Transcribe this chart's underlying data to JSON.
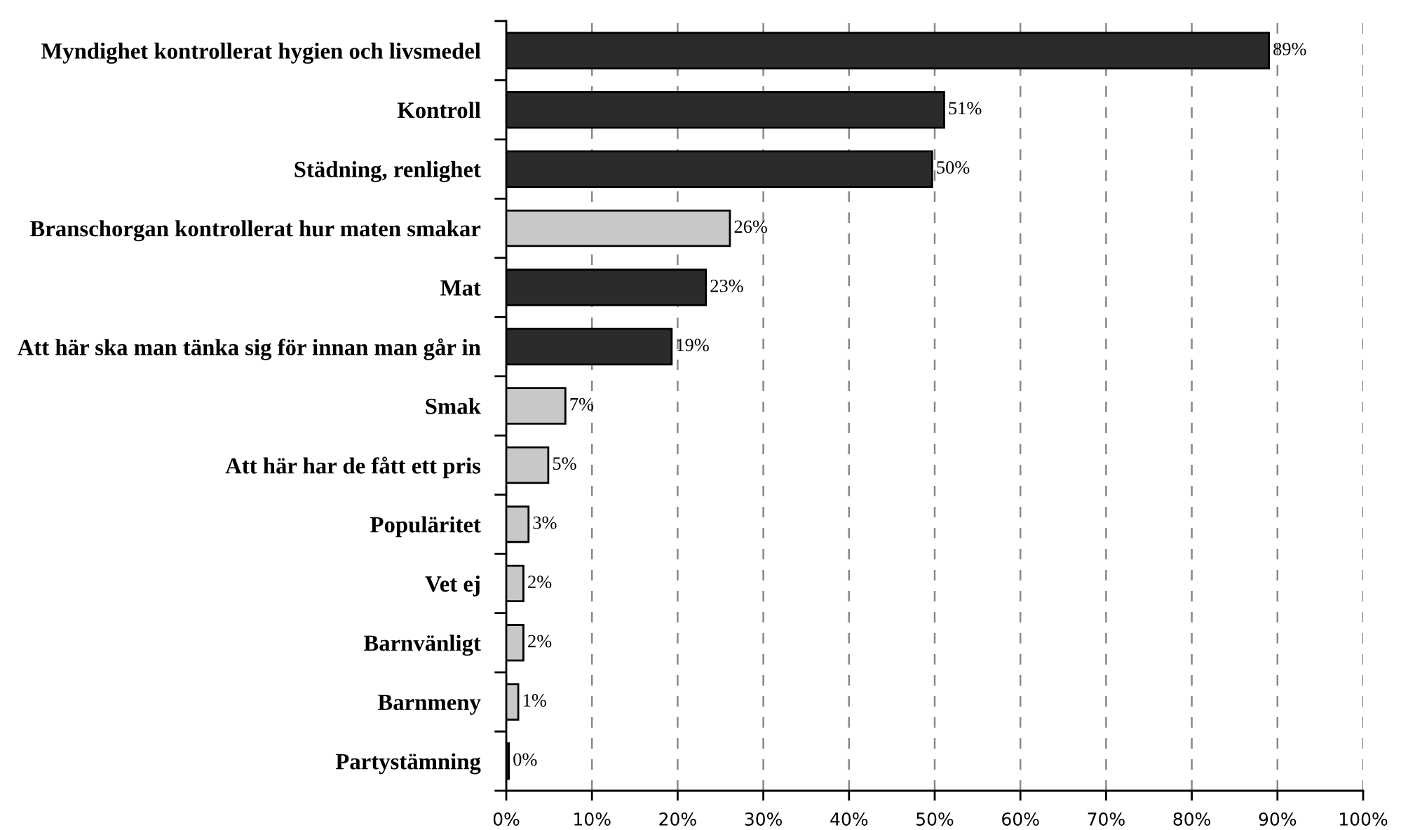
{
  "chart_data": {
    "type": "bar",
    "orientation": "horizontal",
    "categories": [
      "Myndighet kontrollerat hygien och livsmedel",
      "Kontroll",
      "Städning, renlighet",
      "Branschorgan kontrollerat hur maten smakar",
      "Mat",
      "Att här ska man tänka sig för innan man går in",
      "Smak",
      "Att här har de fått ett pris",
      "Populäritet",
      "Vet ej",
      "Barnvänligt",
      "Barnmeny",
      "Partystämning"
    ],
    "values": [
      89.0,
      51.1,
      49.7,
      26.1,
      23.3,
      19.3,
      6.9,
      4.9,
      2.6,
      2.0,
      2.0,
      1.4,
      0.3
    ],
    "colors": [
      "#2b2b2b",
      "#2b2b2b",
      "#2b2b2b",
      "#c8c8c8",
      "#2b2b2b",
      "#2b2b2b",
      "#c8c8c8",
      "#c8c8c8",
      "#c8c8c8",
      "#c8c8c8",
      "#c8c8c8",
      "#c8c8c8",
      "#2b2b2b"
    ],
    "value_labels": [
      "89%",
      "51%",
      "50%",
      "26%",
      "23%",
      "19%",
      "7%",
      "5%",
      "3%",
      "2%",
      "2%",
      "1%",
      "0%"
    ],
    "xlim": [
      0,
      100
    ],
    "xticks": [
      {
        "value": 0,
        "label": "0%"
      },
      {
        "value": 10,
        "label": "10%"
      },
      {
        "value": 20,
        "label": "20%"
      },
      {
        "value": 30,
        "label": "30%"
      },
      {
        "value": 40,
        "label": "40%"
      },
      {
        "value": 50,
        "label": "50%"
      },
      {
        "value": 60,
        "label": "60%"
      },
      {
        "value": 70,
        "label": "70%"
      },
      {
        "value": 80,
        "label": "80%"
      },
      {
        "value": 90,
        "label": "90%"
      },
      {
        "value": 100,
        "label": "100%"
      }
    ],
    "grid": "x"
  }
}
